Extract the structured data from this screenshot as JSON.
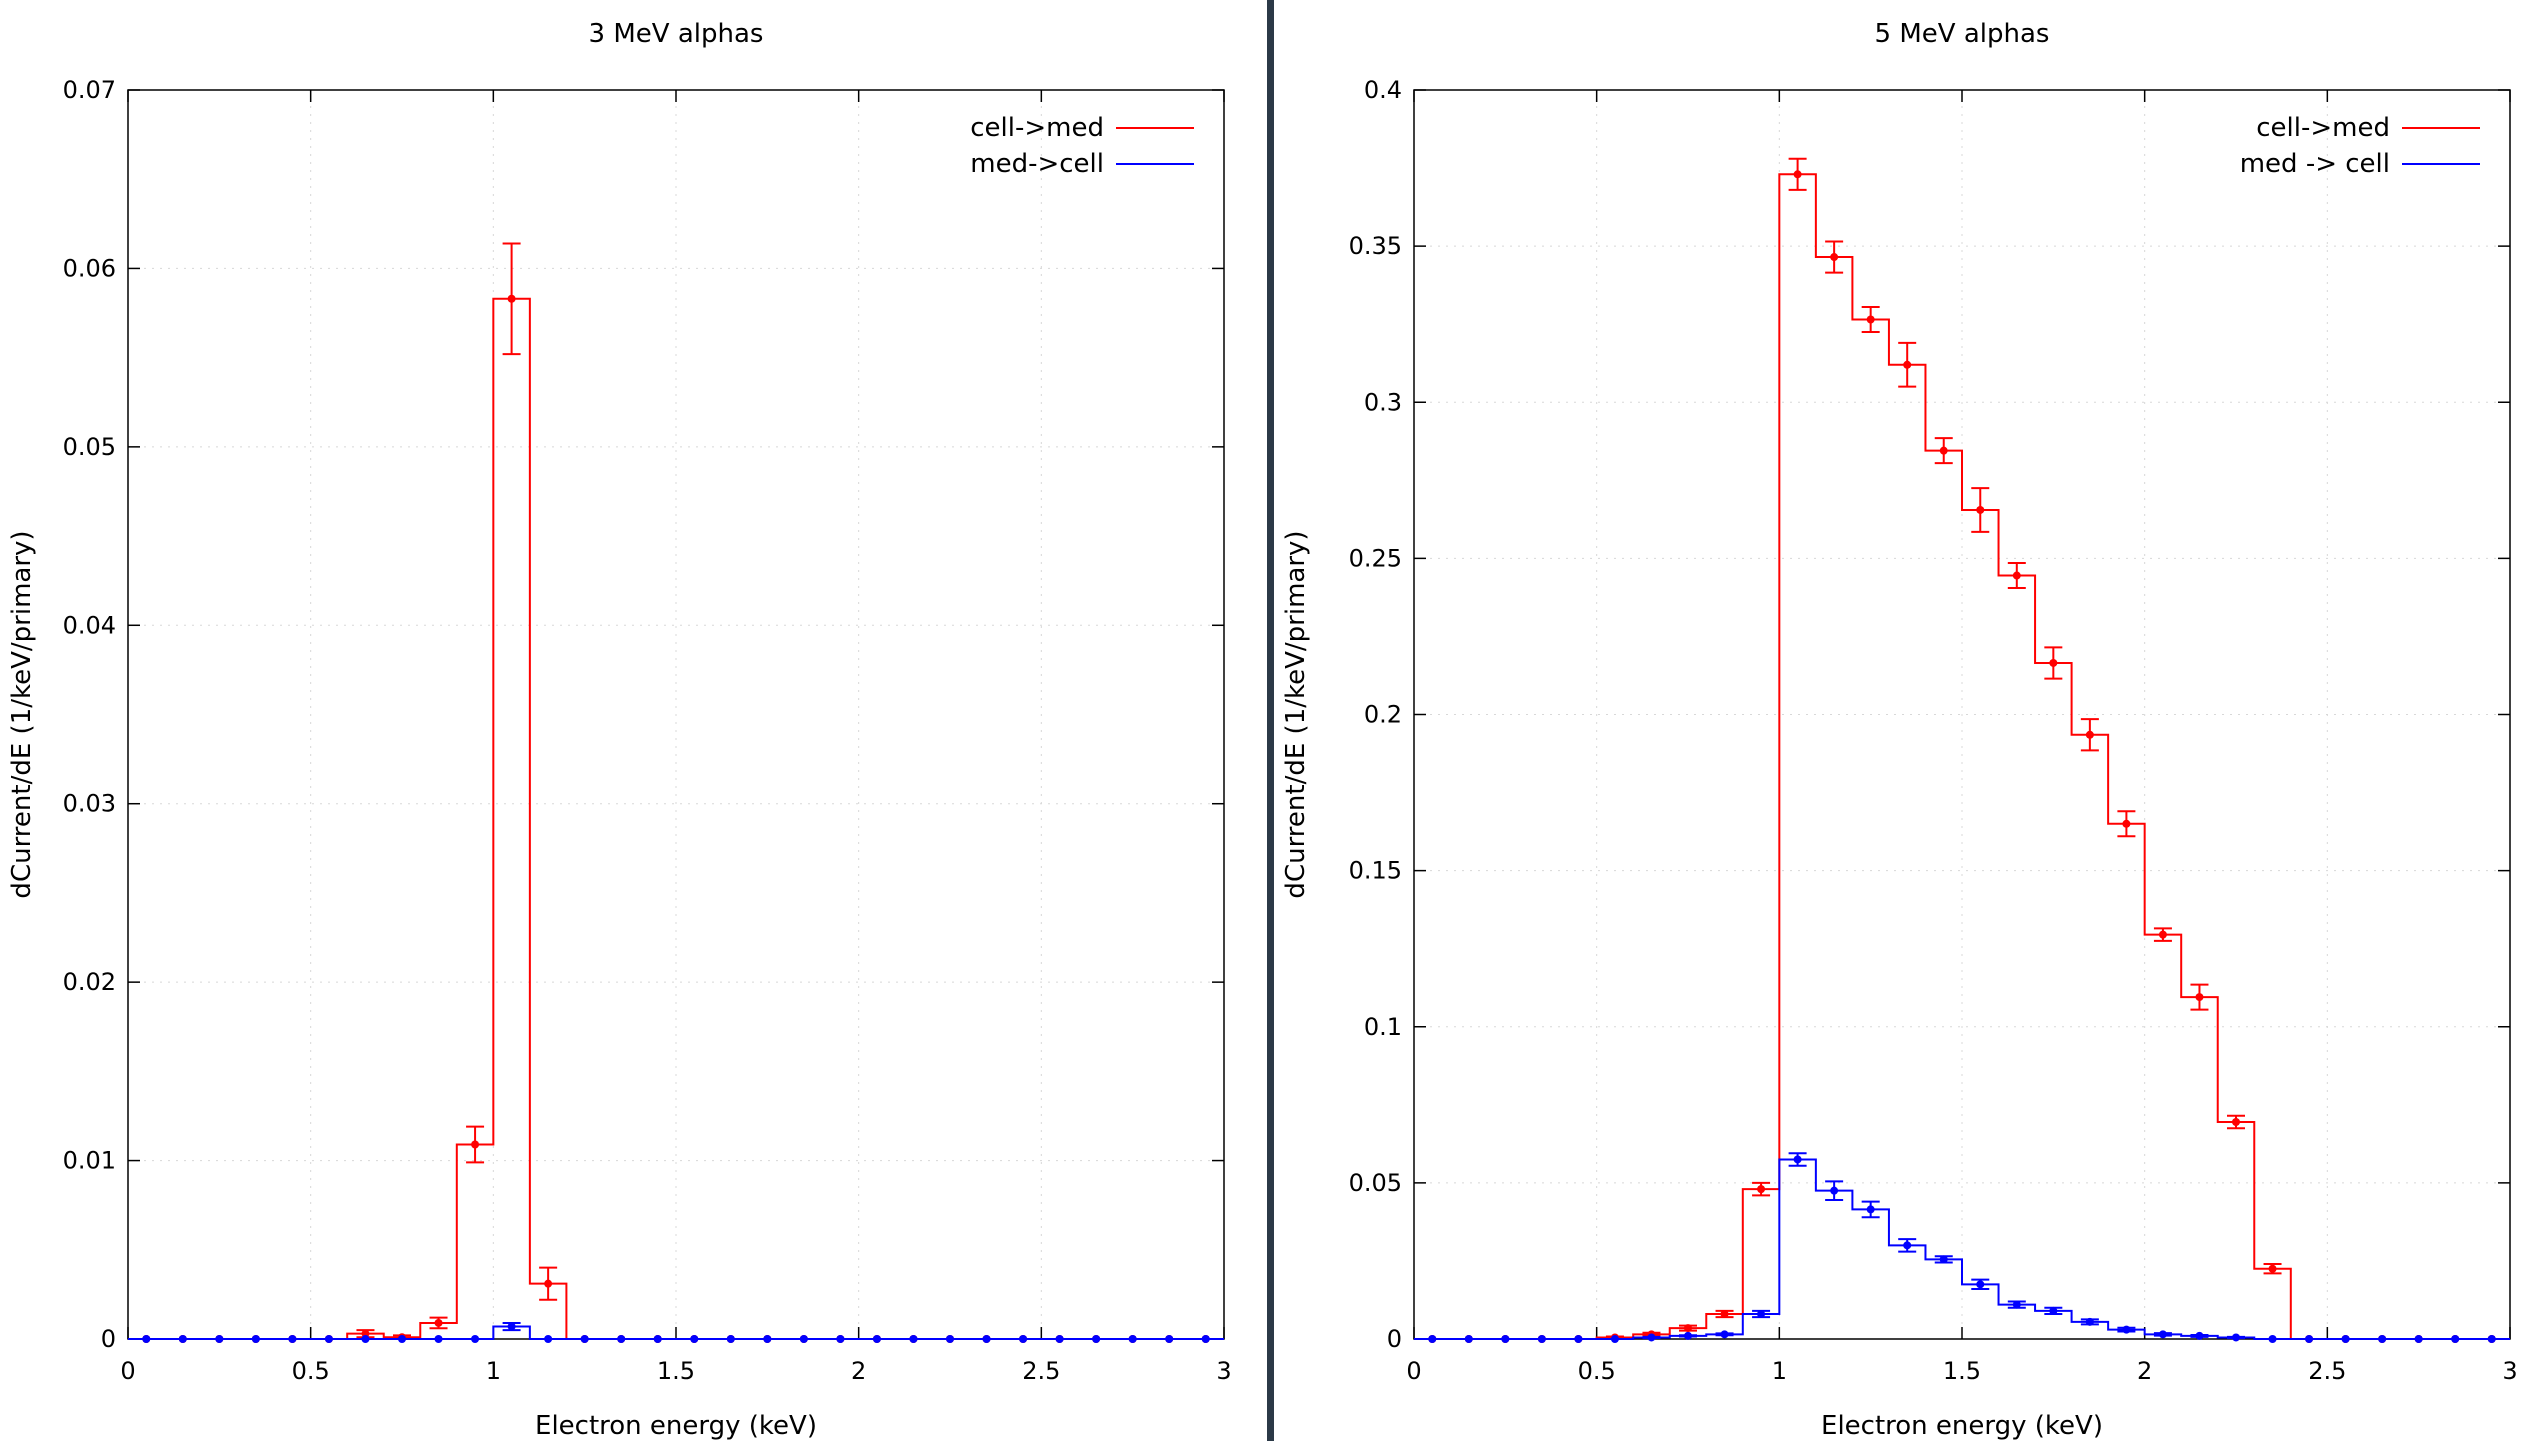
{
  "layout": "two-panels-side-by-side",
  "chart_data": [
    {
      "type": "line",
      "style": "histogram-steps-with-errorbars",
      "title": "3 MeV alphas",
      "xlabel": "Electron energy (keV)",
      "ylabel": "dCurrent/dE (1/keV/primary)",
      "xlim": [
        0,
        3
      ],
      "ylim": [
        0,
        0.07
      ],
      "xticks": [
        "0",
        "0.5",
        "1",
        "1.5",
        "2",
        "2.5",
        "3"
      ],
      "yticks": [
        "0",
        "0.01",
        "0.02",
        "0.03",
        "0.04",
        "0.05",
        "0.06",
        "0.07"
      ],
      "grid": true,
      "legend_position": "top-right",
      "bin_width": 0.1,
      "x": [
        0.05,
        0.15,
        0.25,
        0.35,
        0.45,
        0.55,
        0.65,
        0.75,
        0.85,
        0.95,
        1.05,
        1.15,
        1.25,
        1.35,
        1.45,
        1.55,
        1.65,
        1.75,
        1.85,
        1.95,
        2.05,
        2.15,
        2.25,
        2.35,
        2.45,
        2.55,
        2.65,
        2.75,
        2.85,
        2.95
      ],
      "series": [
        {
          "name": "cell->med",
          "color": "#ff0000",
          "values": [
            0,
            0,
            0,
            0,
            0,
            0,
            0.0003,
            0.0001,
            0.0009,
            0.0109,
            0.0583,
            0.0031,
            0,
            0,
            0,
            0,
            0,
            0,
            0,
            0,
            0,
            0,
            0,
            0,
            0,
            0,
            0,
            0,
            0,
            0
          ],
          "errors": [
            0,
            0,
            0,
            0,
            0,
            0,
            0.0002,
            0.0001,
            0.0003,
            0.001,
            0.0031,
            0.0009,
            0,
            0,
            0,
            0,
            0,
            0,
            0,
            0,
            0,
            0,
            0,
            0,
            0,
            0,
            0,
            0,
            0,
            0
          ]
        },
        {
          "name": "med->cell",
          "color": "#0000ff",
          "values": [
            0,
            0,
            0,
            0,
            0,
            0,
            0,
            0,
            0,
            0,
            0.0007,
            0,
            0,
            0,
            0,
            0,
            0,
            0,
            0,
            0,
            0,
            0,
            0,
            0,
            0,
            0,
            0,
            0,
            0,
            0
          ],
          "errors": [
            0,
            0,
            0,
            0,
            0,
            0,
            0,
            0,
            0,
            0,
            0.0002,
            0,
            0,
            0,
            0,
            0,
            0,
            0,
            0,
            0,
            0,
            0,
            0,
            0,
            0,
            0,
            0,
            0,
            0,
            0
          ]
        }
      ]
    },
    {
      "type": "line",
      "style": "histogram-steps-with-errorbars",
      "title": "5 MeV alphas",
      "xlabel": "Electron energy (keV)",
      "ylabel": "dCurrent/dE (1/keV/primary)",
      "xlim": [
        0,
        3
      ],
      "ylim": [
        0,
        0.4
      ],
      "xticks": [
        "0",
        "0.5",
        "1",
        "1.5",
        "2",
        "2.5",
        "3"
      ],
      "yticks": [
        "0",
        "0.05",
        "0.1",
        "0.15",
        "0.2",
        "0.25",
        "0.3",
        "0.35",
        "0.4"
      ],
      "grid": true,
      "legend_position": "top-right",
      "bin_width": 0.1,
      "x": [
        0.05,
        0.15,
        0.25,
        0.35,
        0.45,
        0.55,
        0.65,
        0.75,
        0.85,
        0.95,
        1.05,
        1.15,
        1.25,
        1.35,
        1.45,
        1.55,
        1.65,
        1.75,
        1.85,
        1.95,
        2.05,
        2.15,
        2.25,
        2.35,
        2.45,
        2.55,
        2.65,
        2.75,
        2.85,
        2.95
      ],
      "series": [
        {
          "name": "cell->med",
          "color": "#ff0000",
          "values": [
            0,
            0,
            0,
            0,
            0,
            0.0005,
            0.0015,
            0.0035,
            0.008,
            0.048,
            0.373,
            0.3465,
            0.3265,
            0.312,
            0.2845,
            0.2655,
            0.2445,
            0.2165,
            0.1935,
            0.165,
            0.1295,
            0.1095,
            0.0695,
            0.0225,
            0,
            0,
            0,
            0,
            0,
            0
          ],
          "errors": [
            0,
            0,
            0,
            0,
            0,
            0.0003,
            0.0005,
            0.0008,
            0.001,
            0.002,
            0.005,
            0.005,
            0.004,
            0.007,
            0.004,
            0.007,
            0.004,
            0.005,
            0.005,
            0.004,
            0.002,
            0.004,
            0.002,
            0.0015,
            0,
            0,
            0,
            0,
            0,
            0
          ]
        },
        {
          "name": "med -> cell",
          "color": "#0000ff",
          "values": [
            0,
            0,
            0,
            0,
            0,
            0,
            0.0005,
            0.001,
            0.0015,
            0.008,
            0.0575,
            0.0475,
            0.0415,
            0.03,
            0.0255,
            0.0175,
            0.011,
            0.009,
            0.0055,
            0.003,
            0.0015,
            0.001,
            0.0005,
            0,
            0,
            0,
            0,
            0,
            0,
            0
          ],
          "errors": [
            0,
            0,
            0,
            0,
            0,
            0,
            0.0002,
            0.0002,
            0.0003,
            0.001,
            0.002,
            0.003,
            0.0025,
            0.002,
            0.001,
            0.0015,
            0.001,
            0.001,
            0.0008,
            0.0006,
            0.0004,
            0.0003,
            0.0002,
            0,
            0,
            0,
            0,
            0,
            0,
            0
          ]
        }
      ]
    }
  ]
}
